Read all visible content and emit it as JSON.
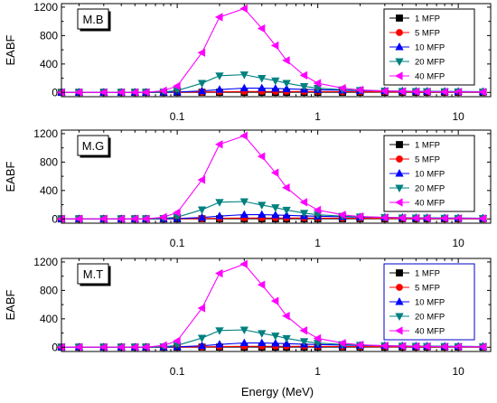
{
  "figure": {
    "xlabel": "Energy (MeV)"
  },
  "chart_data": [
    {
      "type": "line",
      "panel_label": "M.B",
      "ylabel": "EABF",
      "xscale": "log",
      "xlim": [
        0.015,
        17
      ],
      "ylim": [
        -60,
        1250
      ],
      "yticks": [
        0,
        400,
        800,
        1200
      ],
      "xticks": [
        0.1,
        1,
        10
      ],
      "legend_position": "top-right",
      "x": [
        0.015,
        0.02,
        0.03,
        0.04,
        0.05,
        0.06,
        0.08,
        0.1,
        0.15,
        0.2,
        0.3,
        0.4,
        0.5,
        0.6,
        0.8,
        1,
        1.5,
        2,
        3,
        4,
        5,
        6,
        8,
        10,
        15
      ],
      "series": [
        {
          "name": "1 MFP",
          "color": "#000000",
          "marker": "square",
          "values": [
            1,
            1,
            1,
            1,
            1,
            1.1,
            1.2,
            1.4,
            1.8,
            2.1,
            2.4,
            2.5,
            2.5,
            2.5,
            2.4,
            2.3,
            2.2,
            2.1,
            2,
            1.9,
            1.8,
            1.8,
            1.7,
            1.6,
            1.5
          ]
        },
        {
          "name": "5 MFP",
          "color": "#ff0000",
          "marker": "circle",
          "values": [
            1,
            1,
            1,
            1,
            1,
            1.2,
            2,
            3,
            6,
            9,
            12,
            13,
            13,
            12.5,
            12,
            11,
            10,
            9,
            8,
            7.5,
            7,
            6.5,
            6,
            5.5,
            5
          ]
        },
        {
          "name": "10 MFP",
          "color": "#0000ff",
          "marker": "triangle-up",
          "values": [
            1,
            1,
            1,
            1,
            1,
            1.3,
            3,
            6,
            20,
            40,
            60,
            60,
            55,
            50,
            42,
            38,
            30,
            25,
            21,
            18,
            16,
            15,
            13,
            12,
            10
          ]
        },
        {
          "name": "20 MFP",
          "color": "#008080",
          "marker": "triangle-down",
          "values": [
            1,
            1,
            1,
            1,
            1,
            1.5,
            8,
            25,
            130,
            235,
            250,
            200,
            165,
            130,
            85,
            60,
            40,
            30,
            22,
            18,
            16,
            14,
            12,
            11,
            10
          ]
        },
        {
          "name": "40 MFP",
          "color": "#ff00ff",
          "marker": "triangle-left",
          "values": [
            1,
            1,
            1,
            1,
            1,
            2,
            25,
            90,
            560,
            1060,
            1180,
            900,
            660,
            450,
            240,
            130,
            60,
            35,
            20,
            15,
            12,
            10,
            8,
            7,
            6
          ]
        }
      ]
    },
    {
      "type": "line",
      "panel_label": "M.G",
      "ylabel": "EABF",
      "xscale": "log",
      "xlim": [
        0.015,
        17
      ],
      "ylim": [
        -60,
        1250
      ],
      "yticks": [
        0,
        400,
        800,
        1200
      ],
      "xticks": [
        0.1,
        1,
        10
      ],
      "legend_position": "top-right",
      "x": [
        0.015,
        0.02,
        0.03,
        0.04,
        0.05,
        0.06,
        0.08,
        0.1,
        0.15,
        0.2,
        0.3,
        0.4,
        0.5,
        0.6,
        0.8,
        1,
        1.5,
        2,
        3,
        4,
        5,
        6,
        8,
        10,
        15
      ],
      "series": [
        {
          "name": "1 MFP",
          "color": "#000000",
          "marker": "square",
          "values": [
            1,
            1,
            1,
            1,
            1,
            1.1,
            1.2,
            1.4,
            1.8,
            2.1,
            2.4,
            2.5,
            2.5,
            2.5,
            2.4,
            2.3,
            2.2,
            2.1,
            2,
            1.9,
            1.8,
            1.8,
            1.7,
            1.6,
            1.5
          ]
        },
        {
          "name": "5 MFP",
          "color": "#ff0000",
          "marker": "circle",
          "values": [
            1,
            1,
            1,
            1,
            1,
            1.2,
            2,
            3,
            6,
            9,
            12,
            13,
            13,
            12.5,
            12,
            11,
            10,
            9,
            8,
            7.5,
            7,
            6.5,
            6,
            5.5,
            5
          ]
        },
        {
          "name": "10 MFP",
          "color": "#0000ff",
          "marker": "triangle-up",
          "values": [
            1,
            1,
            1,
            1,
            1,
            1.3,
            3,
            6,
            20,
            40,
            60,
            60,
            55,
            50,
            42,
            38,
            30,
            25,
            21,
            18,
            16,
            15,
            13,
            12,
            10
          ]
        },
        {
          "name": "20 MFP",
          "color": "#008080",
          "marker": "triangle-down",
          "values": [
            1,
            1,
            1,
            1,
            1,
            1.5,
            8,
            25,
            130,
            235,
            245,
            195,
            160,
            125,
            82,
            58,
            40,
            30,
            22,
            18,
            16,
            14,
            12,
            11,
            10
          ]
        },
        {
          "name": "40 MFP",
          "color": "#ff00ff",
          "marker": "triangle-left",
          "values": [
            1,
            1,
            1,
            1,
            1,
            2,
            25,
            90,
            550,
            1050,
            1170,
            880,
            650,
            440,
            235,
            125,
            58,
            34,
            20,
            15,
            12,
            10,
            8,
            7,
            6
          ]
        }
      ]
    },
    {
      "type": "line",
      "panel_label": "M.T",
      "ylabel": "EABF",
      "xscale": "log",
      "xlim": [
        0.015,
        17
      ],
      "ylim": [
        -60,
        1250
      ],
      "yticks": [
        0,
        400,
        800,
        1200
      ],
      "xticks": [
        0.1,
        1,
        10
      ],
      "legend_position": "top-right",
      "x": [
        0.015,
        0.02,
        0.03,
        0.04,
        0.05,
        0.06,
        0.08,
        0.1,
        0.15,
        0.2,
        0.3,
        0.4,
        0.5,
        0.6,
        0.8,
        1,
        1.5,
        2,
        3,
        4,
        5,
        6,
        8,
        10,
        15
      ],
      "series": [
        {
          "name": "1 MFP",
          "color": "#000000",
          "marker": "square",
          "values": [
            1,
            1,
            1,
            1,
            1,
            1.1,
            1.2,
            1.4,
            1.8,
            2.1,
            2.4,
            2.5,
            2.5,
            2.5,
            2.4,
            2.3,
            2.2,
            2.1,
            2,
            1.9,
            1.8,
            1.8,
            1.7,
            1.6,
            1.5
          ]
        },
        {
          "name": "5 MFP",
          "color": "#ff0000",
          "marker": "circle",
          "values": [
            1,
            1,
            1,
            1,
            1,
            1.2,
            2,
            3,
            6,
            9,
            12,
            13,
            13,
            12.5,
            12,
            11,
            10,
            9,
            8,
            7.5,
            7,
            6.5,
            6,
            5.5,
            5
          ]
        },
        {
          "name": "10 MFP",
          "color": "#0000ff",
          "marker": "triangle-up",
          "values": [
            1,
            1,
            1,
            1,
            1,
            1.3,
            3,
            6,
            20,
            40,
            60,
            60,
            55,
            50,
            42,
            38,
            30,
            25,
            21,
            18,
            16,
            15,
            13,
            12,
            10
          ]
        },
        {
          "name": "20 MFP",
          "color": "#008080",
          "marker": "triangle-down",
          "values": [
            1,
            1,
            1,
            1,
            1,
            1.5,
            8,
            25,
            130,
            235,
            245,
            195,
            160,
            125,
            82,
            58,
            40,
            30,
            22,
            18,
            16,
            14,
            12,
            11,
            10
          ]
        },
        {
          "name": "40 MFP",
          "color": "#ff00ff",
          "marker": "triangle-left",
          "values": [
            1,
            1,
            1,
            1,
            1,
            2,
            25,
            90,
            550,
            1040,
            1170,
            880,
            650,
            440,
            235,
            125,
            58,
            34,
            20,
            15,
            12,
            10,
            8,
            7,
            6
          ]
        }
      ]
    }
  ]
}
